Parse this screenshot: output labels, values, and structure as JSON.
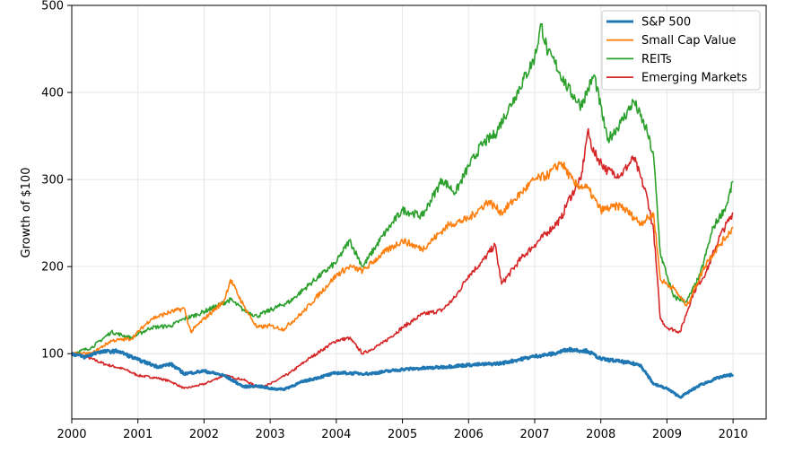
{
  "chart_data": {
    "type": "line",
    "title": "",
    "xlabel": "",
    "ylabel": "Growth of $100",
    "xlim": [
      2000,
      2010.5
    ],
    "ylim": [
      25,
      500
    ],
    "xticks": [
      2000,
      2001,
      2002,
      2003,
      2004,
      2005,
      2006,
      2007,
      2008,
      2009,
      2010
    ],
    "xtick_labels": [
      "2000",
      "2001",
      "2002",
      "2003",
      "2004",
      "2005",
      "2006",
      "2007",
      "2008",
      "2009",
      "2010"
    ],
    "yticks": [
      100,
      200,
      300,
      400,
      500
    ],
    "ytick_labels": [
      "100",
      "200",
      "300",
      "400",
      "500"
    ],
    "grid": true,
    "legend_position": "top-right",
    "series": [
      {
        "name": "S&P 500",
        "color": "#1f77b4",
        "x": [
          2000,
          2000.2,
          2000.4,
          2000.7,
          2001.0,
          2001.3,
          2001.5,
          2001.7,
          2002.0,
          2002.3,
          2002.6,
          2002.8,
          2003.0,
          2003.2,
          2003.5,
          2004.0,
          2004.5,
          2005.0,
          2005.5,
          2006.0,
          2006.3,
          2006.5,
          2007.0,
          2007.3,
          2007.5,
          2007.8,
          2008.0,
          2008.3,
          2008.6,
          2008.8,
          2009.0,
          2009.2,
          2009.5,
          2009.8,
          2010.0
        ],
        "y": [
          100,
          96,
          102,
          103,
          93,
          85,
          88,
          77,
          80,
          75,
          62,
          63,
          60,
          59,
          68,
          78,
          77,
          82,
          84,
          87,
          88,
          89,
          97,
          100,
          105,
          103,
          94,
          91,
          87,
          65,
          60,
          50,
          64,
          73,
          76
        ]
      },
      {
        "name": "Small Cap Value",
        "color": "#ff7f0e",
        "x": [
          2000,
          2000.3,
          2000.6,
          2000.9,
          2001.2,
          2001.5,
          2001.7,
          2001.8,
          2002.0,
          2002.3,
          2002.4,
          2002.6,
          2002.8,
          2003.0,
          2003.2,
          2003.5,
          2004.0,
          2004.2,
          2004.4,
          2004.7,
          2005.0,
          2005.3,
          2005.7,
          2006.0,
          2006.3,
          2006.5,
          2006.8,
          2007.0,
          2007.2,
          2007.4,
          2007.6,
          2007.8,
          2008.0,
          2008.3,
          2008.6,
          2008.8,
          2008.9,
          2009.1,
          2009.3,
          2009.6,
          2009.8,
          2010.0
        ],
        "y": [
          100,
          100,
          115,
          117,
          140,
          148,
          152,
          125,
          140,
          160,
          185,
          155,
          130,
          132,
          128,
          148,
          190,
          200,
          195,
          215,
          230,
          220,
          248,
          255,
          275,
          262,
          285,
          300,
          305,
          320,
          295,
          290,
          265,
          270,
          250,
          260,
          185,
          175,
          155,
          205,
          225,
          245
        ]
      },
      {
        "name": "REITs",
        "color": "#2ca02c",
        "x": [
          2000,
          2000.3,
          2000.6,
          2000.9,
          2001.2,
          2001.5,
          2001.7,
          2001.9,
          2002.2,
          2002.4,
          2002.6,
          2002.8,
          2003.0,
          2003.3,
          2003.6,
          2004.0,
          2004.2,
          2004.4,
          2004.7,
          2005.0,
          2005.3,
          2005.6,
          2005.8,
          2006.0,
          2006.2,
          2006.4,
          2006.7,
          2007.0,
          2007.1,
          2007.2,
          2007.3,
          2007.5,
          2007.7,
          2007.9,
          2008.1,
          2008.3,
          2008.5,
          2008.7,
          2008.8,
          2008.9,
          2009.0,
          2009.1,
          2009.3,
          2009.5,
          2009.7,
          2009.9,
          2010.0
        ],
        "y": [
          100,
          107,
          125,
          118,
          130,
          132,
          140,
          145,
          155,
          162,
          150,
          143,
          150,
          160,
          180,
          205,
          230,
          200,
          235,
          265,
          258,
          300,
          285,
          315,
          340,
          352,
          395,
          440,
          478,
          445,
          435,
          405,
          385,
          420,
          345,
          365,
          390,
          355,
          325,
          215,
          190,
          165,
          160,
          190,
          245,
          270,
          298
        ]
      },
      {
        "name": "Emerging Markets",
        "color": "#d62728",
        "x": [
          2000,
          2000.2,
          2000.5,
          2000.8,
          2001.0,
          2001.3,
          2001.5,
          2001.7,
          2002.0,
          2002.3,
          2002.6,
          2002.8,
          2003.0,
          2003.3,
          2003.6,
          2004.0,
          2004.2,
          2004.4,
          2004.7,
          2005.0,
          2005.3,
          2005.6,
          2005.8,
          2006.0,
          2006.2,
          2006.4,
          2006.5,
          2006.8,
          2007.0,
          2007.2,
          2007.4,
          2007.5,
          2007.7,
          2007.8,
          2007.9,
          2008.1,
          2008.3,
          2008.5,
          2008.7,
          2008.8,
          2008.9,
          2009.0,
          2009.2,
          2009.4,
          2009.6,
          2009.8,
          2010.0
        ],
        "y": [
          100,
          97,
          88,
          82,
          75,
          72,
          68,
          60,
          65,
          75,
          70,
          62,
          65,
          78,
          95,
          115,
          118,
          100,
          112,
          130,
          145,
          150,
          165,
          190,
          205,
          225,
          180,
          210,
          225,
          240,
          255,
          275,
          300,
          355,
          330,
          310,
          305,
          325,
          280,
          240,
          140,
          130,
          125,
          170,
          195,
          235,
          262
        ]
      }
    ]
  }
}
